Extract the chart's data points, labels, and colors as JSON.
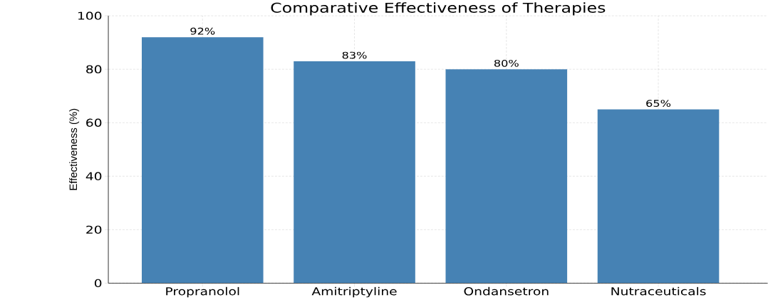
{
  "chart_data": {
    "type": "bar",
    "title": "Comparative Effectiveness of Therapies",
    "ylabel": "Effectiveness (%)",
    "categories": [
      "Propranolol",
      "Amitriptyline",
      "Ondansetron",
      "Nutraceuticals"
    ],
    "values": [
      92,
      83,
      80,
      65
    ],
    "value_labels": [
      "92%",
      "83%",
      "80%",
      "65%"
    ],
    "color": "#4682b4",
    "ylim": [
      0,
      100
    ],
    "yticks": [
      0,
      20,
      40,
      60,
      80,
      100
    ],
    "grid": true
  }
}
